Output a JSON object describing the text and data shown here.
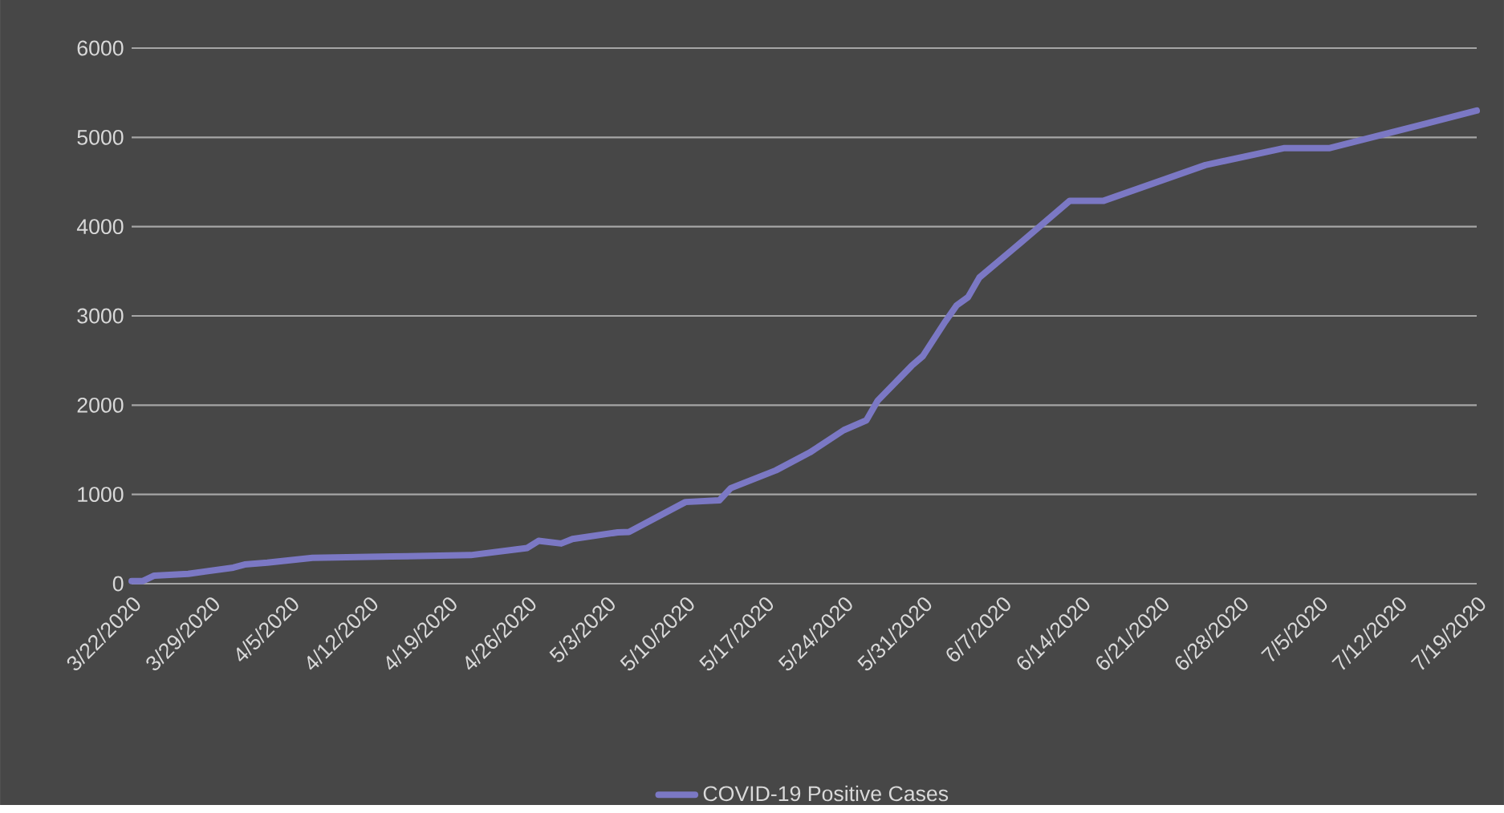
{
  "chart_data": {
    "type": "line",
    "x": [
      "2020-03-22",
      "2020-03-23",
      "2020-03-24",
      "2020-03-27",
      "2020-03-31",
      "2020-04-01",
      "2020-04-03",
      "2020-04-07",
      "2020-04-14",
      "2020-04-21",
      "2020-04-26",
      "2020-04-27",
      "2020-04-29",
      "2020-04-30",
      "2020-05-04",
      "2020-05-05",
      "2020-05-10",
      "2020-05-13",
      "2020-05-14",
      "2020-05-18",
      "2020-05-21",
      "2020-05-24",
      "2020-05-26",
      "2020-05-27",
      "2020-05-30",
      "2020-05-31",
      "2020-06-02",
      "2020-06-03",
      "2020-06-04",
      "2020-06-05",
      "2020-06-08",
      "2020-06-13",
      "2020-06-16",
      "2020-06-25",
      "2020-07-02",
      "2020-07-06",
      "2020-07-19"
    ],
    "series": [
      {
        "name": "COVID-19 Positive Cases",
        "color": "#7b78c4",
        "values": [
          30,
          30,
          90,
          110,
          180,
          215,
          235,
          290,
          305,
          320,
          400,
          480,
          450,
          500,
          575,
          580,
          915,
          935,
          1070,
          1270,
          1470,
          1720,
          1830,
          2050,
          2440,
          2550,
          2940,
          3120,
          3210,
          3430,
          3750,
          4290,
          4290,
          4690,
          4880,
          4880,
          5300
        ]
      }
    ],
    "xlim": [
      "2020-03-22",
      "2020-07-19"
    ],
    "xticks": [
      {
        "value": "2020-03-22",
        "label": "3/22/2020"
      },
      {
        "value": "2020-03-29",
        "label": "3/29/2020"
      },
      {
        "value": "2020-04-05",
        "label": "4/5/2020"
      },
      {
        "value": "2020-04-12",
        "label": "4/12/2020"
      },
      {
        "value": "2020-04-19",
        "label": "4/19/2020"
      },
      {
        "value": "2020-04-26",
        "label": "4/26/2020"
      },
      {
        "value": "2020-05-03",
        "label": "5/3/2020"
      },
      {
        "value": "2020-05-10",
        "label": "5/10/2020"
      },
      {
        "value": "2020-05-17",
        "label": "5/17/2020"
      },
      {
        "value": "2020-05-24",
        "label": "5/24/2020"
      },
      {
        "value": "2020-05-31",
        "label": "5/31/2020"
      },
      {
        "value": "2020-06-07",
        "label": "6/7/2020"
      },
      {
        "value": "2020-06-14",
        "label": "6/14/2020"
      },
      {
        "value": "2020-06-21",
        "label": "6/21/2020"
      },
      {
        "value": "2020-06-28",
        "label": "6/28/2020"
      },
      {
        "value": "2020-07-05",
        "label": "7/5/2020"
      },
      {
        "value": "2020-07-12",
        "label": "7/12/2020"
      },
      {
        "value": "2020-07-19",
        "label": "7/19/2020"
      }
    ],
    "ylim": [
      0,
      6000
    ],
    "yticks": [
      0,
      1000,
      2000,
      3000,
      4000,
      5000,
      6000
    ],
    "grid": "y",
    "legend": "bottom",
    "marker": "none",
    "line_style": "solid"
  }
}
